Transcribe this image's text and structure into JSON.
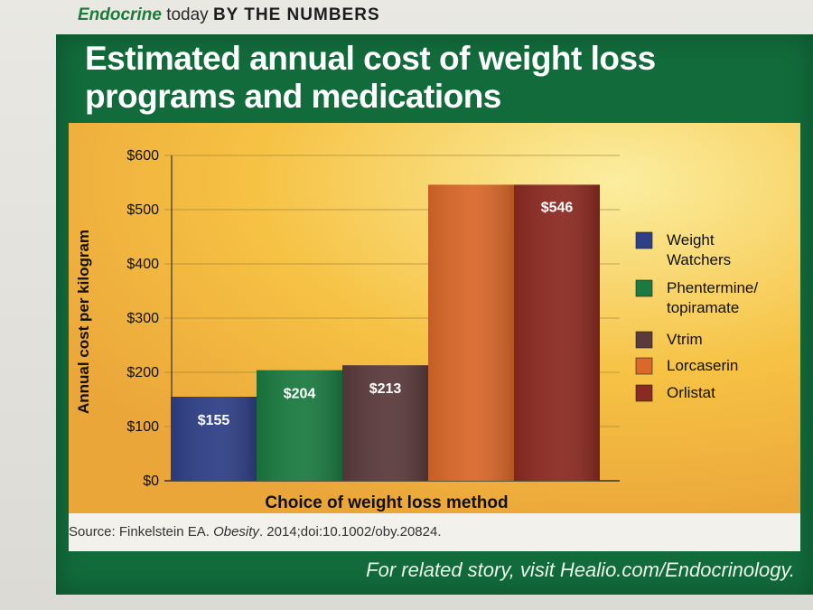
{
  "header": {
    "brand": "Endocrine",
    "brand_suffix": "today",
    "section": "BY THE NUMBERS"
  },
  "title": "Estimated annual cost of weight loss programs and medications",
  "source": {
    "prefix": "Source: Finkelstein EA. ",
    "journal": "Obesity",
    "suffix": ". 2014;doi:10.1002/oby.20824."
  },
  "footer": "For related story, visit Healio.com/Endocrinology.",
  "colors": {
    "panel_green": "#126b3b",
    "plot_gold": "#f6c244",
    "plot_light": "#fbeea0"
  },
  "chart_data": {
    "type": "bar",
    "xlabel": "Choice of weight loss method",
    "ylabel": "Annual cost per kilogram",
    "ylim": [
      0,
      600
    ],
    "yticks": [
      0,
      100,
      200,
      300,
      400,
      500,
      600
    ],
    "ytick_labels": [
      "$0",
      "$100",
      "$200",
      "$300",
      "$400",
      "$500",
      "$600"
    ],
    "grid": true,
    "legend_position": "right",
    "series": [
      {
        "name": "Weight Watchers",
        "legend_lines": [
          "Weight",
          "Watchers"
        ],
        "value": 155,
        "label": "$155",
        "color": "#2f3f86"
      },
      {
        "name": "Phentermine/ topiramate",
        "legend_lines": [
          "Phentermine/",
          "topiramate"
        ],
        "value": 204,
        "label": "$204",
        "color": "#1b7a40"
      },
      {
        "name": "Vtrim",
        "legend_lines": [
          "Vtrim"
        ],
        "value": 213,
        "label": "$213",
        "color": "#5a3a3c"
      },
      {
        "name": "Lorcaserin",
        "legend_lines": [
          "Lorcaserin"
        ],
        "value": 546,
        "label": "",
        "color": "#d9682a"
      },
      {
        "name": "Orlistat",
        "legend_lines": [
          "Orlistat"
        ],
        "value": 546,
        "label": "$546",
        "color": "#8b2a22"
      }
    ]
  }
}
